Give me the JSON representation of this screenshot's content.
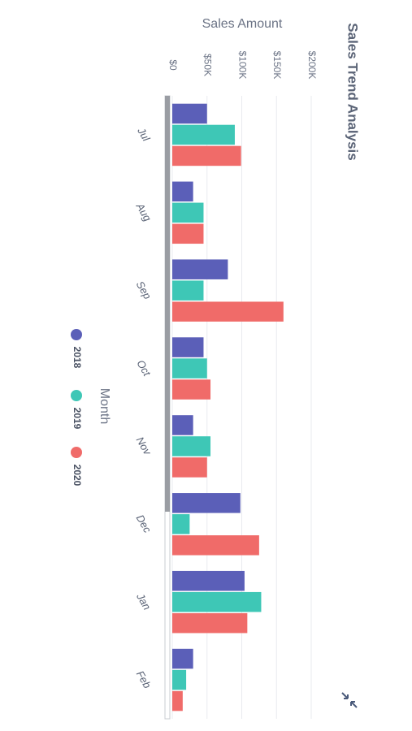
{
  "chart_data": {
    "type": "bar",
    "orientation": "horizontal",
    "title": "Sales Trend Analysis",
    "xlabel": "Sales Amount",
    "ylabel": "Month",
    "categories": [
      "Jul",
      "Aug",
      "Sep",
      "Oct",
      "Nov",
      "Dec",
      "Jan",
      "Feb"
    ],
    "x_ticks": [
      "$0",
      "$50K",
      "$100K",
      "$150K",
      "$200K"
    ],
    "x_tick_values": [
      0,
      50000,
      100000,
      150000,
      200000
    ],
    "xlim": [
      0,
      200000
    ],
    "grid": true,
    "legend_position": "bottom",
    "series": [
      {
        "name": "2018",
        "color": "#5b5fb8",
        "values": [
          50000,
          30000,
          80000,
          45000,
          30000,
          98000,
          104000,
          30000
        ]
      },
      {
        "name": "2019",
        "color": "#3ec7b6",
        "values": [
          90000,
          45000,
          45000,
          50000,
          55000,
          25000,
          128000,
          20000
        ]
      },
      {
        "name": "2020",
        "color": "#f06b69",
        "values": [
          99000,
          45000,
          160000,
          55000,
          50000,
          125000,
          108000,
          15000
        ]
      }
    ]
  },
  "icons": {
    "resize": "collapse-arrows-icon"
  }
}
